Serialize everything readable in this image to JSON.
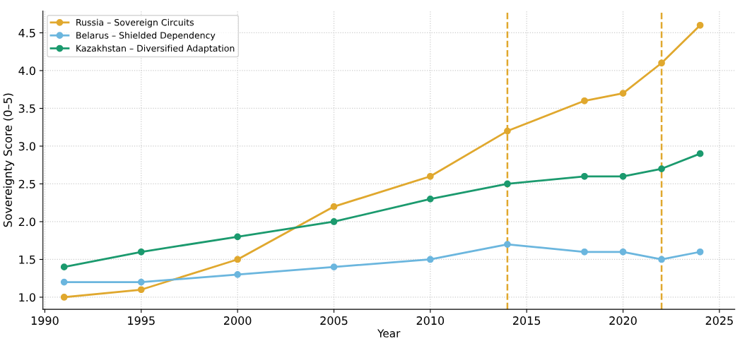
{
  "chart_data": {
    "type": "line",
    "xlabel": "Year",
    "ylabel": "Sovereignty Score (0–5)",
    "x": [
      1991,
      1995,
      2000,
      2005,
      2010,
      2014,
      2018,
      2020,
      2022,
      2024
    ],
    "series": [
      {
        "name": "Russia – Sovereign Circuits",
        "color": "#e0a82e",
        "values": [
          1.0,
          1.1,
          1.5,
          2.2,
          2.6,
          3.2,
          3.6,
          3.7,
          4.1,
          4.6
        ]
      },
      {
        "name": "Belarus – Shielded Dependency",
        "color": "#6bb6de",
        "values": [
          1.2,
          1.2,
          1.3,
          1.4,
          1.5,
          1.7,
          1.6,
          1.6,
          1.5,
          1.6
        ]
      },
      {
        "name": "Kazakhstan – Diversified Adaptation",
        "color": "#1b9a6e",
        "values": [
          1.4,
          1.6,
          1.8,
          2.0,
          2.3,
          2.5,
          2.6,
          2.6,
          2.7,
          2.9
        ]
      }
    ],
    "ref_lines": [
      {
        "axis": "x",
        "value": 2014,
        "label": null,
        "color": "#e0a82e",
        "line_style": "dashed"
      },
      {
        "axis": "x",
        "value": 2022,
        "label": null,
        "color": "#e0a82e",
        "line_style": "dashed"
      }
    ],
    "xlim": [
      1989.9,
      2025.8
    ],
    "xticks": [
      1990,
      1995,
      2000,
      2005,
      2010,
      2015,
      2020,
      2025
    ],
    "ylim": [
      0.84,
      4.79
    ],
    "yticks": [
      {
        "value": 1.0,
        "label": "1.0"
      },
      {
        "value": 1.5,
        "label": "1.5"
      },
      {
        "value": 2.0,
        "label": "2.0"
      },
      {
        "value": 2.5,
        "label": "2.5"
      },
      {
        "value": 3.0,
        "label": "3.0"
      },
      {
        "value": 3.5,
        "label": "3.5"
      },
      {
        "value": 4.0,
        "label": "4.0"
      },
      {
        "value": 4.5,
        "label": "4.5"
      }
    ],
    "grid": true,
    "legend": "top left",
    "marker": "circle",
    "line_style": "solid"
  }
}
